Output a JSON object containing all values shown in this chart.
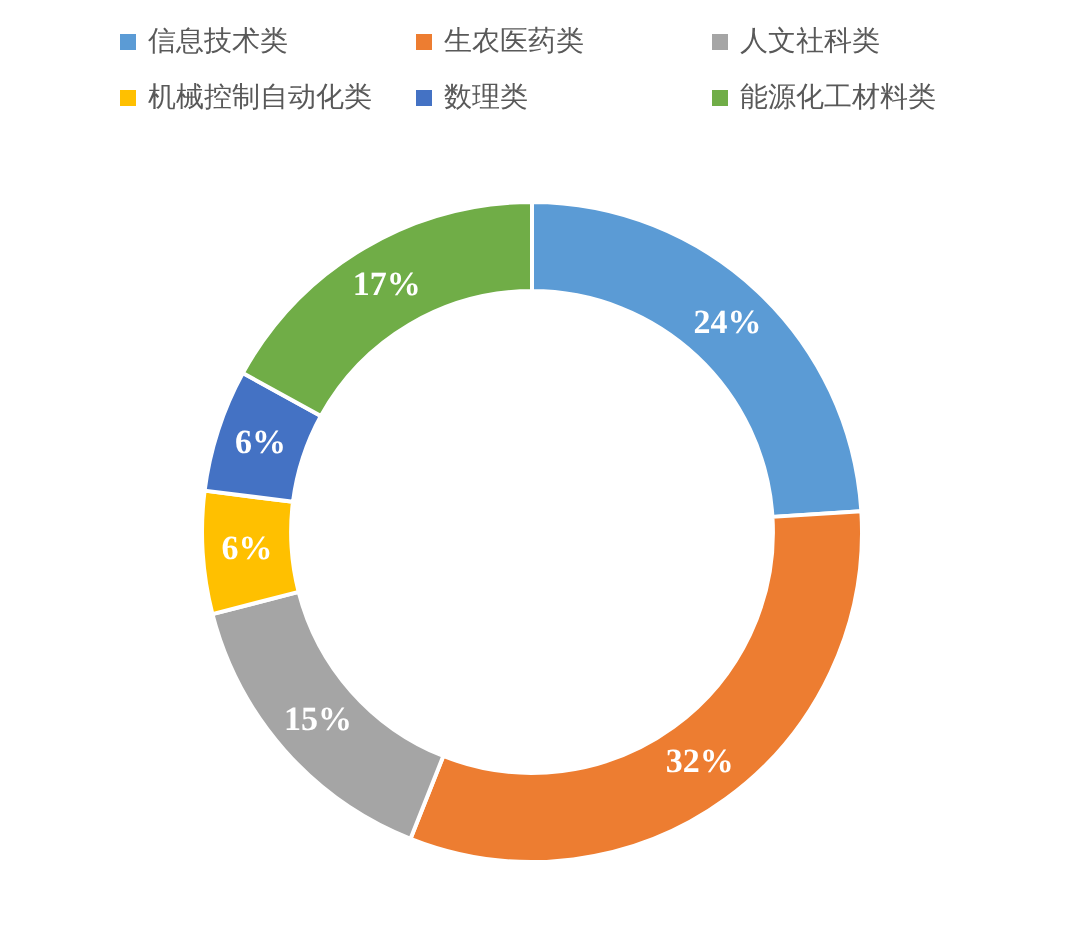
{
  "chart_data": {
    "type": "donut",
    "categories": [
      "信息技术类",
      "生农医药类",
      "人文社科类",
      "机械控制自动化类",
      "数理类",
      "能源化工材料类"
    ],
    "values": [
      24,
      32,
      15,
      6,
      6,
      17
    ],
    "colors": [
      "#5b9bd5",
      "#ed7d31",
      "#a5a5a5",
      "#ffc000",
      "#4472c4",
      "#70ad47"
    ],
    "value_labels": [
      "24%",
      "32%",
      "15%",
      "6%",
      "6%",
      "17%"
    ],
    "legend": "top"
  }
}
